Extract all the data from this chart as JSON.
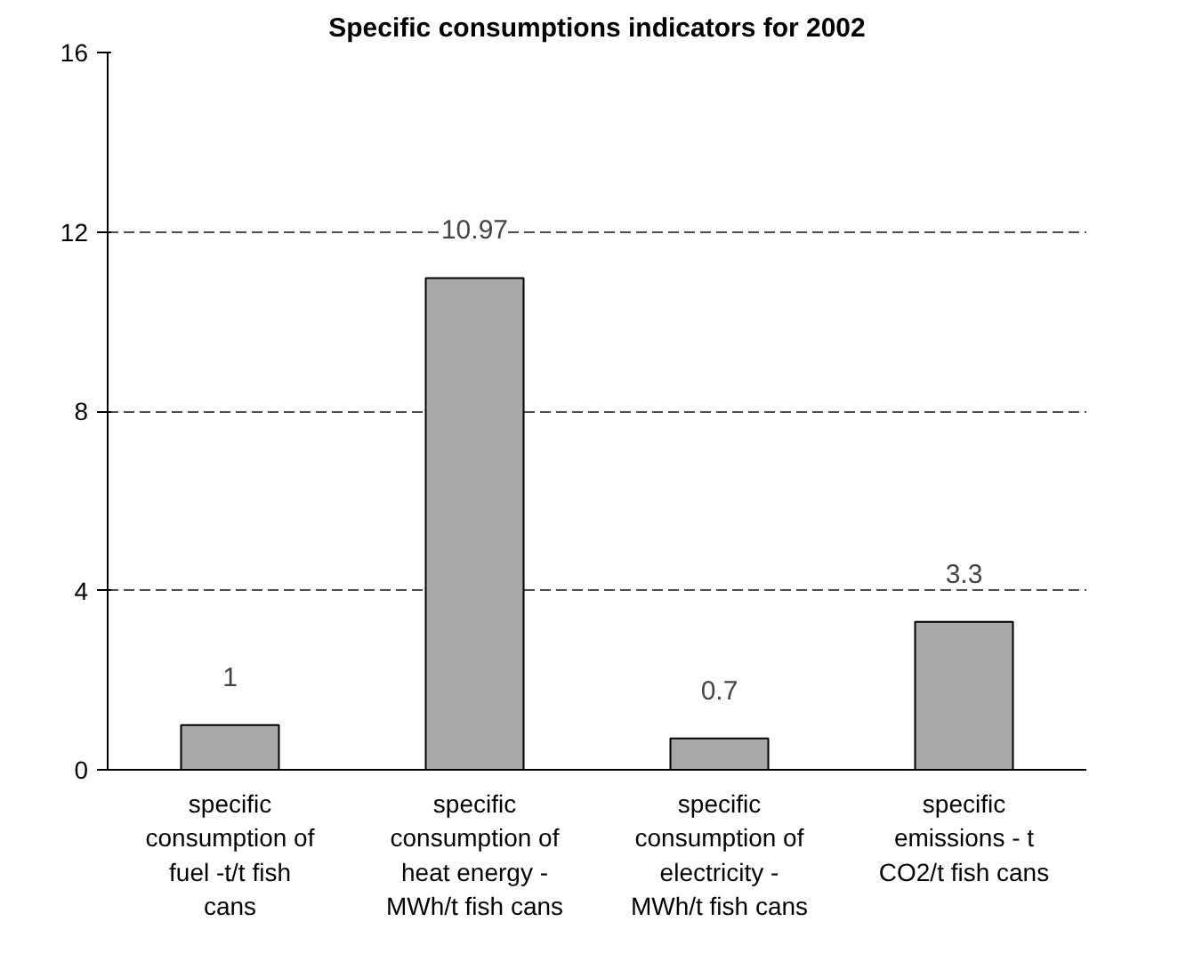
{
  "chart_data": {
    "type": "bar",
    "title": "Specific consumptions indicators for 2002",
    "categories": [
      "specific consumption of fuel -t/t fish cans",
      "specific consumption of heat energy - MWh/t fish cans",
      "specific consumption of electricity - MWh/t fish cans",
      "specific emissions - t CO2/t fish cans"
    ],
    "values": [
      1,
      10.97,
      0.7,
      3.3
    ],
    "color": "#a8a8a8",
    "ylim": [
      0,
      16
    ],
    "yticks": [
      0,
      4,
      8,
      12,
      16
    ],
    "grid": "y",
    "data_labels": true
  }
}
